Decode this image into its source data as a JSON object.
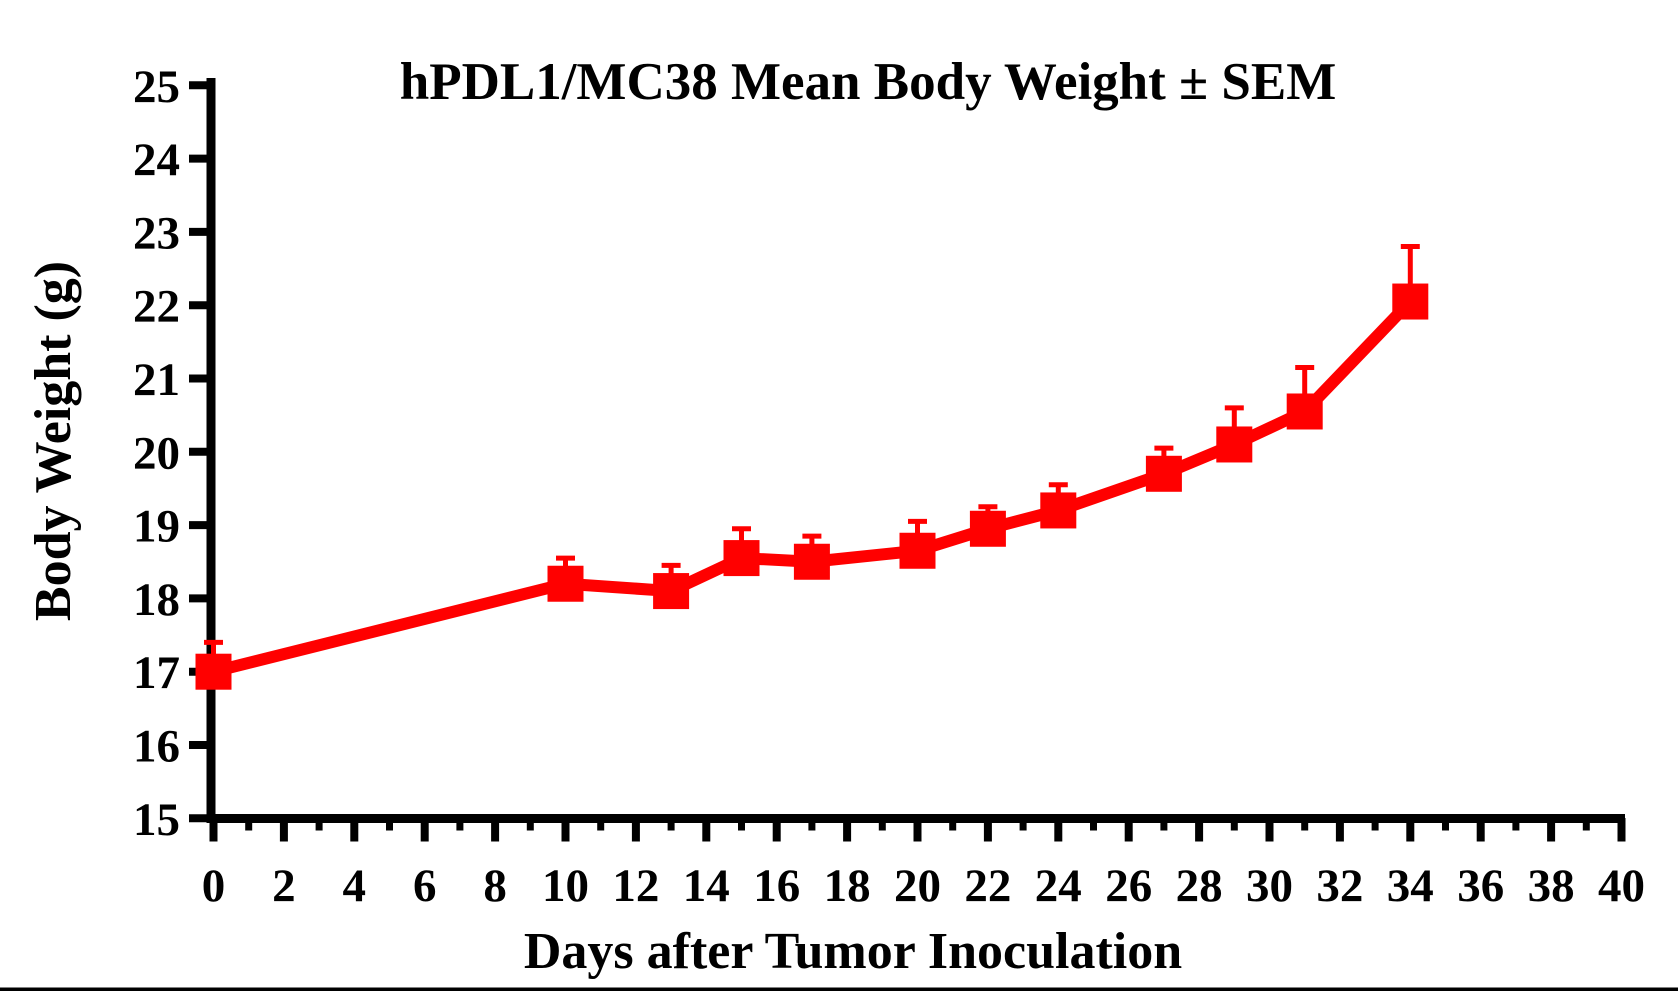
{
  "figure": {
    "background": "#ffffff",
    "axis_color": "#000000",
    "accent_color": "#ff0000",
    "bottom_rule_color": "#000000"
  },
  "chart_data": {
    "type": "line",
    "title": "hPDL1/MC38 Mean Body Weight ± SEM",
    "xlabel": "Days after Tumor Inoculation",
    "ylabel": "Body Weight (g)",
    "xlim": [
      0,
      40
    ],
    "ylim": [
      15,
      25
    ],
    "grid": false,
    "legend": "none",
    "error_bar_style": "upper-only SEM with caps",
    "x_major_ticks": [
      0,
      2,
      4,
      6,
      8,
      10,
      12,
      14,
      16,
      18,
      20,
      22,
      24,
      26,
      28,
      30,
      32,
      34,
      36,
      38,
      40
    ],
    "x_minor_ticks": [
      1,
      3,
      5,
      7,
      9,
      11,
      13,
      15,
      17,
      19,
      21,
      23,
      25,
      27,
      29,
      31,
      33,
      35,
      37,
      39
    ],
    "y_ticks": [
      15,
      16,
      17,
      18,
      19,
      20,
      21,
      22,
      23,
      24,
      25
    ],
    "series": [
      {
        "name": "hPDL1/MC38 Mean Body Weight",
        "color": "#ff0000",
        "marker": "filled-square",
        "x": [
          0,
          10,
          13,
          15,
          17,
          20,
          22,
          24,
          27,
          29,
          31,
          34
        ],
        "y": [
          17.0,
          18.2,
          18.1,
          18.55,
          18.5,
          18.65,
          18.95,
          19.2,
          19.7,
          20.1,
          20.55,
          22.05
        ],
        "sem": [
          0.4,
          0.35,
          0.35,
          0.4,
          0.35,
          0.4,
          0.3,
          0.35,
          0.35,
          0.5,
          0.6,
          0.75
        ]
      }
    ]
  }
}
